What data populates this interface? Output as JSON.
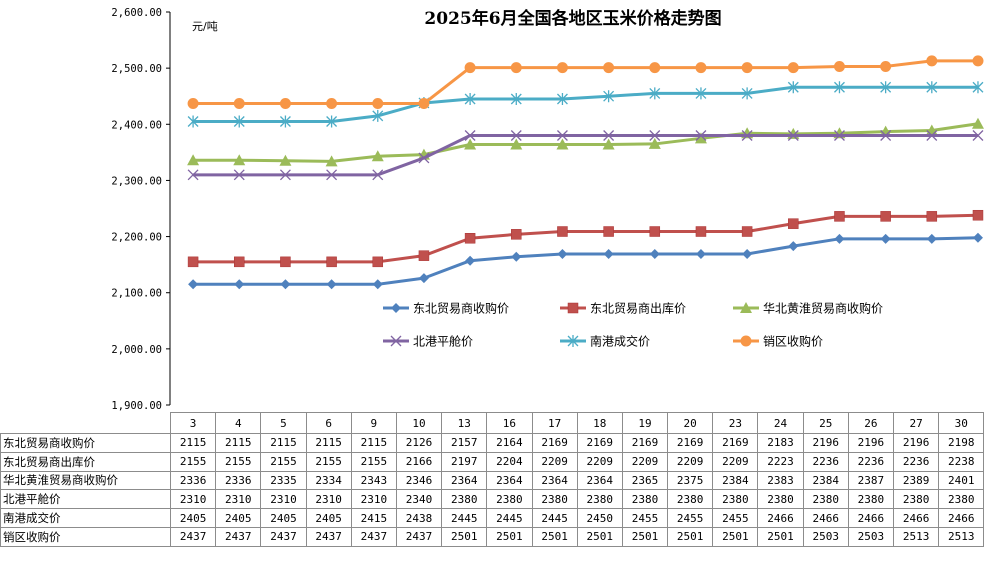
{
  "chart_data": {
    "type": "line",
    "title": "2025年6月全国各地区玉米价格走势图",
    "ylabel": "元/吨",
    "xlabel": "",
    "ylim": [
      1900,
      2600
    ],
    "yticks": [
      1900,
      2000,
      2100,
      2200,
      2300,
      2400,
      2500,
      2600
    ],
    "ytick_labels": [
      "1,900.00",
      "2,000.00",
      "2,100.00",
      "2,200.00",
      "2,300.00",
      "2,400.00",
      "2,500.00",
      "2,600.00"
    ],
    "grid": false,
    "legend_position": "center-right",
    "categories": [
      "3",
      "4",
      "5",
      "6",
      "9",
      "10",
      "13",
      "16",
      "17",
      "18",
      "19",
      "20",
      "23",
      "24",
      "25",
      "26",
      "27",
      "30"
    ],
    "series": [
      {
        "name": "东北贸易商收购价",
        "color": "#4F81BD",
        "marker": "diamond",
        "values": [
          2115,
          2115,
          2115,
          2115,
          2115,
          2126,
          2157,
          2164,
          2169,
          2169,
          2169,
          2169,
          2169,
          2183,
          2196,
          2196,
          2196,
          2198
        ]
      },
      {
        "name": "东北贸易商出库价",
        "color": "#C0504D",
        "marker": "square",
        "values": [
          2155,
          2155,
          2155,
          2155,
          2155,
          2166,
          2197,
          2204,
          2209,
          2209,
          2209,
          2209,
          2209,
          2223,
          2236,
          2236,
          2236,
          2238
        ]
      },
      {
        "name": "华北黄淮贸易商收购价",
        "color": "#9BBB59",
        "marker": "triangle",
        "values": [
          2336,
          2336,
          2335,
          2334,
          2343,
          2346,
          2364,
          2364,
          2364,
          2364,
          2365,
          2375,
          2384,
          2383,
          2384,
          2387,
          2389,
          2401
        ]
      },
      {
        "name": "北港平舱价",
        "color": "#8064A2",
        "marker": "x",
        "values": [
          2310,
          2310,
          2310,
          2310,
          2310,
          2340,
          2380,
          2380,
          2380,
          2380,
          2380,
          2380,
          2380,
          2380,
          2380,
          2380,
          2380,
          2380
        ]
      },
      {
        "name": "南港成交价",
        "color": "#4BACC6",
        "marker": "star",
        "values": [
          2405,
          2405,
          2405,
          2405,
          2415,
          2438,
          2445,
          2445,
          2445,
          2450,
          2455,
          2455,
          2455,
          2466,
          2466,
          2466,
          2466,
          2466
        ]
      },
      {
        "name": "销区收购价",
        "color": "#F79646",
        "marker": "circle",
        "values": [
          2437,
          2437,
          2437,
          2437,
          2437,
          2437,
          2501,
          2501,
          2501,
          2501,
          2501,
          2501,
          2501,
          2501,
          2503,
          2503,
          2513,
          2513
        ]
      }
    ]
  }
}
